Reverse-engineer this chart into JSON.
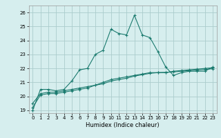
{
  "xlabel": "Humidex (Indice chaleur)",
  "ylabel": "",
  "background_color": "#d6eeee",
  "grid_color": "#aacccc",
  "line_color": "#1a7a6e",
  "xlim": [
    -0.5,
    23.5
  ],
  "ylim": [
    18.8,
    26.5
  ],
  "yticks": [
    19,
    20,
    21,
    22,
    23,
    24,
    25,
    26
  ],
  "xticks": [
    0,
    1,
    2,
    3,
    4,
    5,
    6,
    7,
    8,
    9,
    10,
    11,
    12,
    13,
    14,
    15,
    16,
    17,
    18,
    19,
    20,
    21,
    22,
    23
  ],
  "series1_x": [
    0,
    1,
    2,
    3,
    4,
    5,
    6,
    7,
    8,
    9,
    10,
    11,
    12,
    13,
    14,
    15,
    16,
    17,
    18,
    19,
    20,
    21,
    22,
    23
  ],
  "series1_y": [
    19.0,
    20.5,
    20.5,
    20.4,
    20.5,
    21.1,
    21.9,
    22.0,
    23.0,
    23.3,
    24.8,
    24.5,
    24.4,
    25.8,
    24.4,
    24.2,
    23.2,
    22.1,
    21.5,
    21.7,
    21.8,
    21.8,
    21.8,
    22.1
  ],
  "series2_x": [
    0,
    1,
    2,
    3,
    4,
    5,
    6,
    7,
    8,
    9,
    10,
    11,
    12,
    13,
    14,
    15,
    16,
    17,
    18,
    19,
    20,
    21,
    22,
    23
  ],
  "series2_y": [
    19.5,
    20.2,
    20.3,
    20.3,
    20.4,
    20.5,
    20.6,
    20.7,
    20.8,
    21.0,
    21.2,
    21.3,
    21.4,
    21.5,
    21.6,
    21.7,
    21.7,
    21.7,
    21.8,
    21.85,
    21.9,
    21.95,
    22.0,
    22.05
  ],
  "series3_x": [
    0,
    1,
    2,
    3,
    4,
    5,
    6,
    7,
    8,
    9,
    10,
    11,
    12,
    13,
    14,
    15,
    16,
    17,
    18,
    19,
    20,
    21,
    22,
    23
  ],
  "series3_y": [
    19.2,
    20.1,
    20.2,
    20.2,
    20.3,
    20.4,
    20.5,
    20.6,
    20.8,
    20.9,
    21.1,
    21.2,
    21.3,
    21.45,
    21.55,
    21.65,
    21.7,
    21.72,
    21.75,
    21.8,
    21.85,
    21.88,
    21.92,
    21.98
  ],
  "xlabel_fontsize": 6.0,
  "tick_fontsize": 5.0
}
